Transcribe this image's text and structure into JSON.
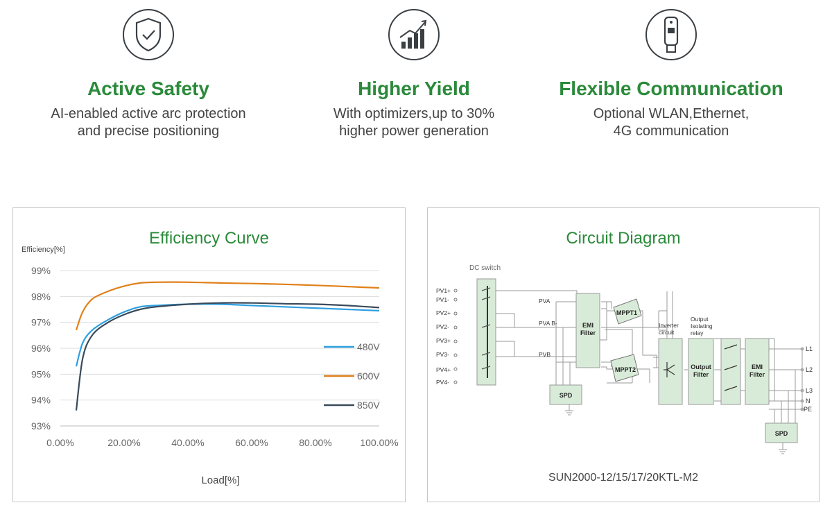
{
  "features": [
    {
      "icon": "shield-check-icon",
      "title": "Active Safety",
      "desc1": "AI-enabled active arc protection",
      "desc2": "and precise positioning"
    },
    {
      "icon": "rising-bars-icon",
      "title": "Higher Yield",
      "desc1": "With optimizers,up to 30%",
      "desc2": "higher power generation"
    },
    {
      "icon": "dongle-icon",
      "title": "Flexible Communication",
      "desc1": "Optional WLAN,Ethernet,",
      "desc2": "4G communication"
    }
  ],
  "colors": {
    "accent": "#2a8a3a",
    "s480": "#2e9fe0",
    "s600": "#e0801a",
    "s850": "#3a4a5a"
  },
  "chart_data": {
    "type": "line",
    "title": "Efficiency Curve",
    "ylabel": "Efficiency[%]",
    "xlabel": "Load[%]",
    "xlim": [
      0,
      100
    ],
    "ylim": [
      93,
      99
    ],
    "x_ticks": [
      "0.00%",
      "20.00%",
      "40.00%",
      "60.00%",
      "80.00%",
      "100.00%"
    ],
    "y_ticks": [
      "93%",
      "94%",
      "95%",
      "96%",
      "97%",
      "98%",
      "99%"
    ],
    "grid": true,
    "legend": "right",
    "series": [
      {
        "name": "480V",
        "x": [
          5,
          7,
          10,
          15,
          20,
          25,
          30,
          40,
          50,
          60,
          70,
          80,
          90,
          100
        ],
        "y": [
          95.3,
          96.2,
          96.7,
          97.1,
          97.4,
          97.6,
          97.65,
          97.7,
          97.7,
          97.65,
          97.6,
          97.55,
          97.5,
          97.45
        ]
      },
      {
        "name": "600V",
        "x": [
          5,
          7,
          10,
          15,
          20,
          25,
          30,
          40,
          50,
          60,
          70,
          80,
          90,
          100
        ],
        "y": [
          96.7,
          97.4,
          97.9,
          98.2,
          98.4,
          98.52,
          98.55,
          98.55,
          98.52,
          98.5,
          98.47,
          98.43,
          98.38,
          98.33
        ]
      },
      {
        "name": "850V",
        "x": [
          5,
          7,
          10,
          15,
          20,
          25,
          30,
          40,
          50,
          60,
          70,
          80,
          90,
          100
        ],
        "y": [
          93.6,
          95.6,
          96.5,
          97.0,
          97.3,
          97.5,
          97.6,
          97.7,
          97.75,
          97.75,
          97.72,
          97.7,
          97.65,
          97.57
        ]
      }
    ]
  },
  "circuit": {
    "title": "Circuit Diagram",
    "model": "SUN2000-12/15/17/20KTL-M2",
    "dc_switch": "DC switch",
    "pv_labels": [
      "PV1+",
      "PV1-",
      "PV2+",
      "PV2-",
      "PV3+",
      "PV3-",
      "PV4+",
      "PV4-"
    ],
    "pva": "PVA",
    "pvab": "PVA B-",
    "pvb": "PVB",
    "emi_l1": "EMI",
    "emi_l2": "Filter",
    "mppt1": "MPPT1",
    "mppt2": "MPPT2",
    "spd": "SPD",
    "inverter_l1": "Inverter",
    "inverter_l2": "circuit",
    "relay_l1": "Output",
    "relay_l2": "Isolating",
    "relay_l3": "relay",
    "ofilter_l1": "Output",
    "ofilter_l2": "Filter",
    "outputs": [
      "L1",
      "L2",
      "L3",
      "N",
      "PE"
    ]
  }
}
